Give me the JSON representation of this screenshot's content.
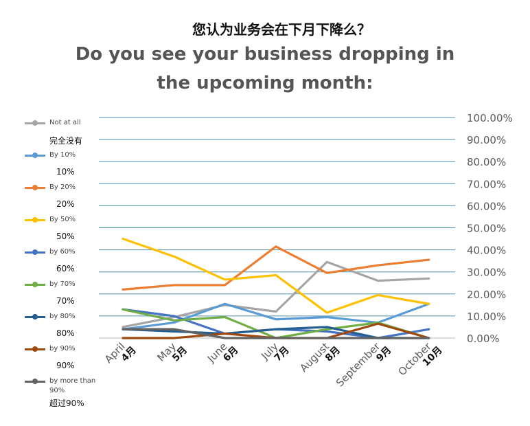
{
  "title_cn": "您认为业务会在下月下降么？",
  "title_en": "Do you see your business dropping in the upcoming month:",
  "chart_data": {
    "type": "line",
    "title": "Do you see your business dropping in the upcoming month:",
    "categories": [
      "April",
      "May",
      "June",
      "July",
      "August",
      "September",
      "October"
    ],
    "categories_cn": [
      "4月",
      "5月",
      "6月",
      "7月",
      "8月",
      "9月",
      "10月"
    ],
    "ylim": [
      0,
      1
    ],
    "yticks": [
      "100.00%",
      "90.00%",
      "80.00%",
      "70.00%",
      "60.00%",
      "50.00%",
      "40.00%",
      "30.00%",
      "20.00%",
      "10.00%",
      "0.00%"
    ],
    "grid": true,
    "legend_position": "left",
    "series": [
      {
        "name": "Not at all",
        "name_cn": "完全没有",
        "color": "#a5a5a5",
        "values": [
          0.05,
          0.095,
          0.15,
          0.12,
          0.345,
          0.26,
          0.27
        ]
      },
      {
        "name": "By 10%",
        "name_cn": "10%",
        "color": "#5b9bd5",
        "values": [
          0.04,
          0.07,
          0.155,
          0.085,
          0.095,
          0.07,
          0.155
        ]
      },
      {
        "name": "By 20%",
        "name_cn": "20%",
        "color": "#ed7d31",
        "values": [
          0.22,
          0.24,
          0.24,
          0.415,
          0.295,
          0.33,
          0.355
        ]
      },
      {
        "name": "By 50%",
        "name_cn": "50%",
        "color": "#ffc000",
        "values": [
          0.45,
          0.37,
          0.265,
          0.285,
          0.115,
          0.195,
          0.155
        ]
      },
      {
        "name": "by 60%",
        "name_cn": "60%",
        "color": "#4472c4",
        "values": [
          0.13,
          0.1,
          0.02,
          0.04,
          0.03,
          0.0,
          0.04
        ]
      },
      {
        "name": "by 70%",
        "name_cn": "70%",
        "color": "#70ad47",
        "values": [
          0.13,
          0.08,
          0.095,
          0.0,
          0.04,
          0.07,
          0.0
        ]
      },
      {
        "name": "by 80%",
        "name_cn": "80%",
        "color": "#255e91",
        "values": [
          0.04,
          0.03,
          0.02,
          0.04,
          0.05,
          0.0,
          0.0
        ]
      },
      {
        "name": "by 90%",
        "name_cn": "90%",
        "color": "#9e480e",
        "values": [
          0.0,
          0.0,
          0.02,
          0.0,
          0.0,
          0.065,
          0.0
        ]
      },
      {
        "name": "by more than 90%",
        "name_cn": "超过90%",
        "color": "#636363",
        "values": [
          0.04,
          0.04,
          0.0,
          0.0,
          0.0,
          0.0,
          0.0
        ]
      }
    ]
  }
}
